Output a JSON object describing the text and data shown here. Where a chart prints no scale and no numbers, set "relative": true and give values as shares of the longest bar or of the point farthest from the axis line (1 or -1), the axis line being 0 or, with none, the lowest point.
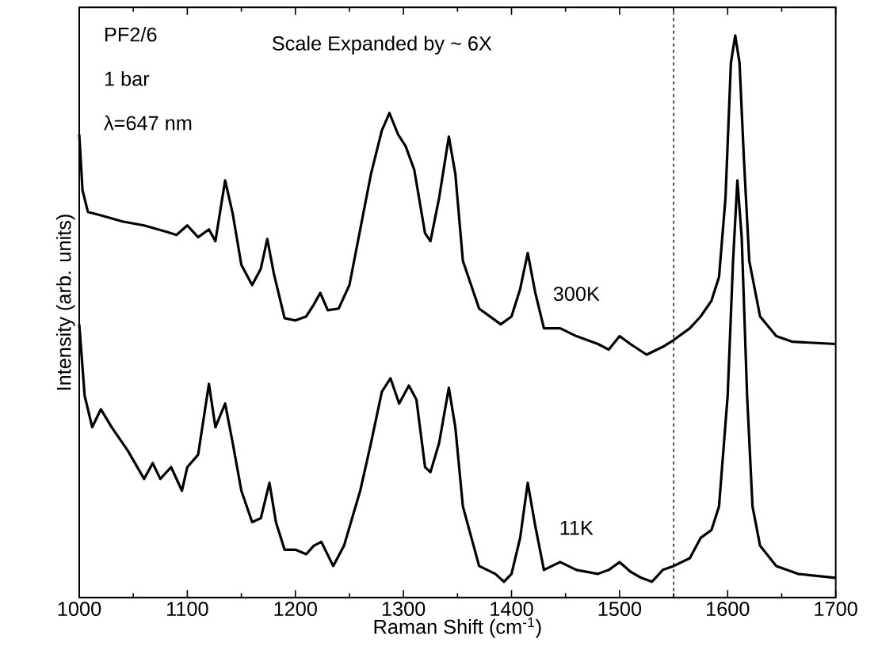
{
  "chart_data": {
    "type": "line",
    "relative": true,
    "xlabel": "Raman Shift (cm$^{-1}$)",
    "ylabel": "Intensity (arb. units)",
    "xlim": [
      1000,
      1700
    ],
    "xticks": [
      1000,
      1100,
      1200,
      1300,
      1400,
      1500,
      1600,
      1700
    ],
    "annotations": [
      "PF2/6",
      "1 bar",
      "λ=647 nm",
      "Scale Expanded by ~ 6X"
    ],
    "ref_lines": [
      {
        "axis": "x",
        "value": 1550,
        "line_style": "dashed",
        "color": "#000000"
      }
    ],
    "x": [
      1000,
      1003,
      1008,
      1020,
      1040,
      1060,
      1080,
      1090,
      1100,
      1110,
      1120,
      1126,
      1135,
      1142,
      1150,
      1160,
      1168,
      1174,
      1180,
      1190,
      1200,
      1210,
      1217,
      1223,
      1230,
      1240,
      1250,
      1260,
      1270,
      1280,
      1287,
      1295,
      1302,
      1310,
      1320,
      1325,
      1333,
      1342,
      1348,
      1355,
      1370,
      1390,
      1400,
      1408,
      1415,
      1422,
      1430,
      1445,
      1460,
      1480,
      1490,
      1500,
      1510,
      1525,
      1540,
      1550,
      1565,
      1575,
      1585,
      1592,
      1598,
      1603,
      1607,
      1611,
      1615,
      1620,
      1630,
      1645,
      1660,
      1700
    ],
    "series": [
      {
        "name": "300K",
        "color": "#000000",
        "values": [
          0.824,
          0.725,
          0.686,
          0.68,
          0.669,
          0.662,
          0.651,
          0.645,
          0.662,
          0.641,
          0.655,
          0.634,
          0.742,
          0.683,
          0.592,
          0.556,
          0.585,
          0.638,
          0.577,
          0.497,
          0.493,
          0.5,
          0.521,
          0.542,
          0.511,
          0.514,
          0.556,
          0.655,
          0.754,
          0.831,
          0.862,
          0.824,
          0.803,
          0.761,
          0.648,
          0.634,
          0.711,
          0.82,
          0.754,
          0.599,
          0.514,
          0.486,
          0.5,
          0.549,
          0.613,
          0.542,
          0.479,
          0.479,
          0.465,
          0.451,
          0.441,
          0.465,
          0.451,
          0.432,
          0.446,
          0.458,
          0.479,
          0.5,
          0.528,
          0.57,
          0.711,
          0.951,
          1.0,
          0.951,
          0.782,
          0.599,
          0.5,
          0.465,
          0.455,
          0.451
        ]
      },
      {
        "name": "11K",
        "color": "#000000",
        "x": [
          1000,
          1005,
          1012,
          1020,
          1030,
          1045,
          1060,
          1068,
          1075,
          1085,
          1095,
          1100,
          1110,
          1120,
          1126,
          1135,
          1142,
          1150,
          1160,
          1168,
          1176,
          1182,
          1190,
          1200,
          1210,
          1217,
          1224,
          1235,
          1245,
          1260,
          1270,
          1280,
          1288,
          1296,
          1305,
          1312,
          1320,
          1325,
          1333,
          1342,
          1348,
          1355,
          1370,
          1385,
          1393,
          1400,
          1408,
          1415,
          1422,
          1430,
          1445,
          1460,
          1480,
          1490,
          1500,
          1510,
          1520,
          1530,
          1540,
          1550,
          1565,
          1575,
          1585,
          1592,
          1600,
          1605,
          1609,
          1613,
          1618,
          1623,
          1630,
          1645,
          1665,
          1700
        ],
        "values": [
          0.486,
          0.359,
          0.303,
          0.335,
          0.303,
          0.261,
          0.211,
          0.239,
          0.211,
          0.232,
          0.19,
          0.232,
          0.254,
          0.38,
          0.303,
          0.345,
          0.275,
          0.19,
          0.134,
          0.141,
          0.204,
          0.134,
          0.085,
          0.085,
          0.077,
          0.092,
          0.099,
          0.056,
          0.092,
          0.19,
          0.275,
          0.366,
          0.39,
          0.345,
          0.377,
          0.352,
          0.232,
          0.223,
          0.275,
          0.373,
          0.303,
          0.162,
          0.056,
          0.042,
          0.028,
          0.042,
          0.106,
          0.204,
          0.127,
          0.049,
          0.063,
          0.049,
          0.042,
          0.049,
          0.063,
          0.046,
          0.035,
          0.028,
          0.049,
          0.056,
          0.07,
          0.106,
          0.12,
          0.162,
          0.359,
          0.599,
          0.742,
          0.641,
          0.359,
          0.162,
          0.092,
          0.056,
          0.042,
          0.035
        ]
      }
    ]
  }
}
